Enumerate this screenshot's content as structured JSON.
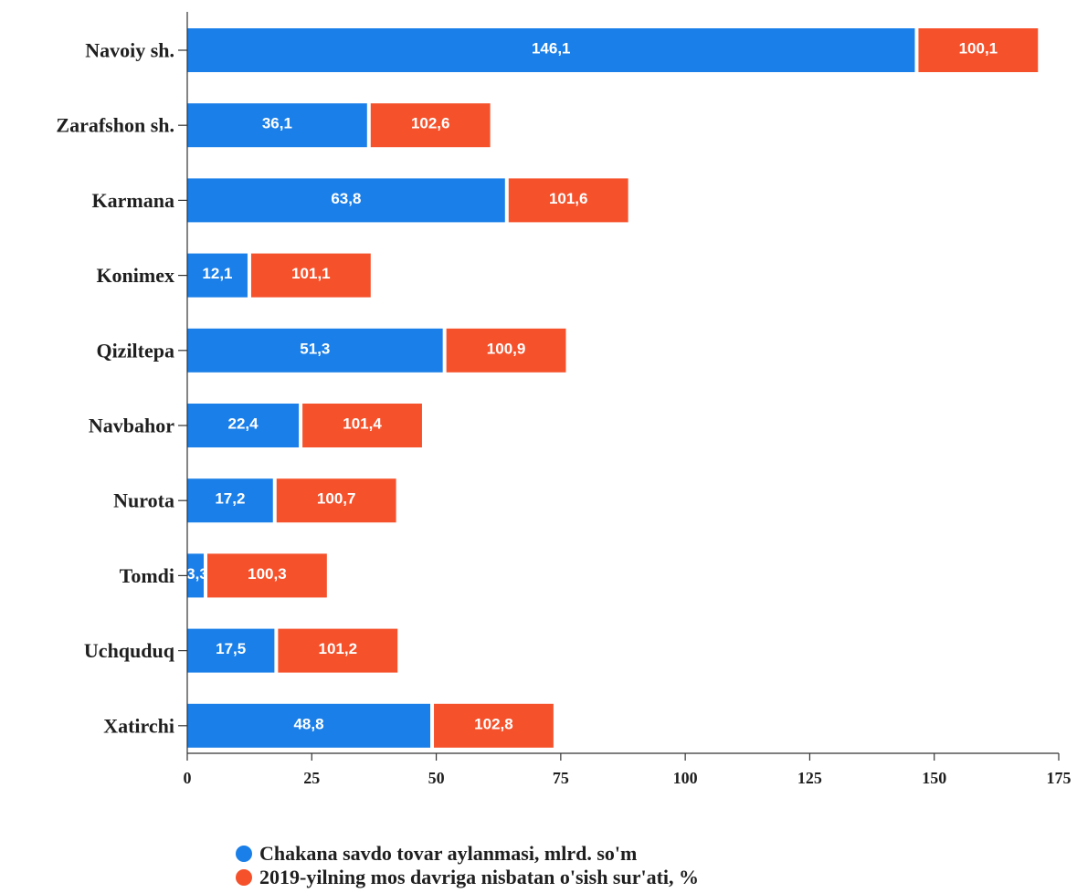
{
  "chart_data": {
    "type": "bar",
    "orientation": "horizontal",
    "stacked": true,
    "categories": [
      "Navoiy sh.",
      "Zarafshon sh.",
      "Karmana",
      "Konimex",
      "Qiziltepa",
      "Navbahor",
      "Nurota",
      "Tomdi",
      "Uchquduq",
      "Xatirchi"
    ],
    "series": [
      {
        "name": "Chakana savdo tovar aylanmasi, mlrd. so'm",
        "color": "#1a7fe8",
        "values": [
          146.1,
          36.1,
          63.8,
          12.1,
          51.3,
          22.4,
          17.2,
          3.3,
          17.5,
          48.8
        ],
        "labels": [
          "146,1",
          "36,1",
          "63,8",
          "12,1",
          "51,3",
          "22,4",
          "17,2",
          "3,3",
          "17,5",
          "48,8"
        ]
      },
      {
        "name": "2019-yilning mos davriga nisbatan o'sish sur'ati, %",
        "color": "#f5512b",
        "values": [
          24,
          24,
          24,
          24,
          24,
          24,
          24,
          24,
          24,
          24
        ],
        "labels": [
          "100,1",
          "102,6",
          "101,6",
          "101,1",
          "100,9",
          "101,4",
          "100,7",
          "100,3",
          "101,2",
          "102,8"
        ]
      }
    ],
    "xlim": [
      0,
      175
    ],
    "xticks": [
      0,
      25,
      50,
      75,
      100,
      125,
      150,
      175
    ],
    "xlabel": "",
    "ylabel": "",
    "title": "",
    "grid": false,
    "legend_position": "bottom"
  }
}
